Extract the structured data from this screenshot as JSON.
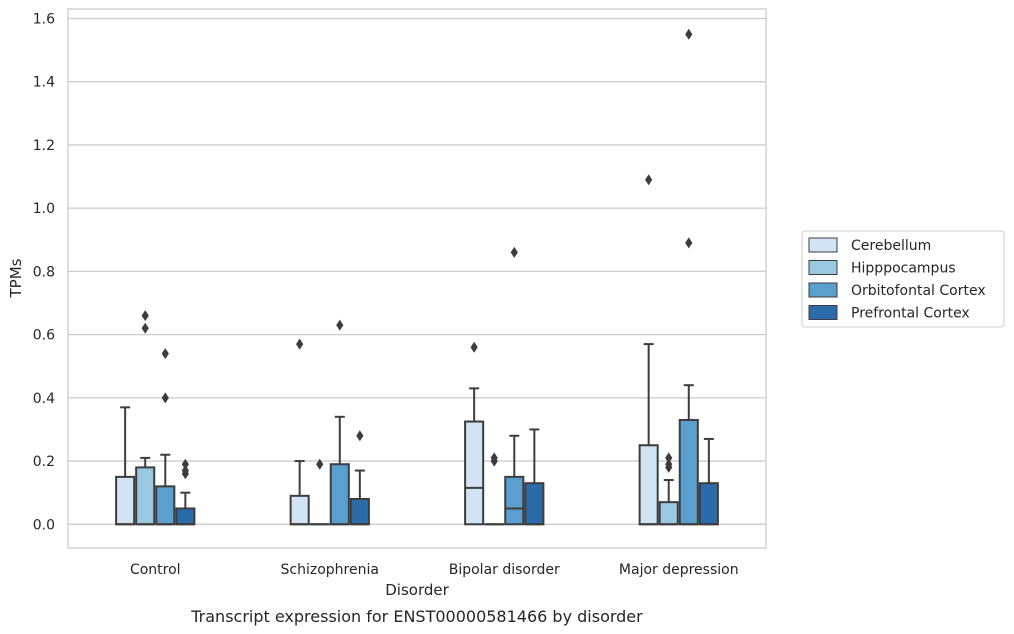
{
  "chart_data": {
    "type": "box",
    "title": "",
    "caption": "Transcript expression for ENST00000581466 by disorder",
    "xlabel": "Disorder",
    "ylabel": "TPMs",
    "ylim": [
      -0.075,
      1.63
    ],
    "yticks": [
      "0.0",
      "0.2",
      "0.4",
      "0.6",
      "0.8",
      "1.0",
      "1.2",
      "1.4",
      "1.6"
    ],
    "grid": "horizontal",
    "legend_position": "right",
    "categories": [
      "Control",
      "Schizophrenia",
      "Bipolar disorder",
      "Major depression"
    ],
    "series": [
      {
        "name": "Cerebellum",
        "color": "#d2e3f3",
        "boxes": [
          {
            "q1": 0.0,
            "median": 0.0,
            "q3": 0.15,
            "whislo": 0.0,
            "whishi": 0.37,
            "fliers": []
          },
          {
            "q1": 0.0,
            "median": 0.0,
            "q3": 0.09,
            "whislo": 0.0,
            "whishi": 0.2,
            "fliers": [
              0.57
            ]
          },
          {
            "q1": 0.0,
            "median": 0.115,
            "q3": 0.325,
            "whislo": 0.0,
            "whishi": 0.43,
            "fliers": [
              0.56
            ]
          },
          {
            "q1": 0.0,
            "median": 0.0,
            "q3": 0.25,
            "whislo": 0.0,
            "whishi": 0.57,
            "fliers": [
              1.09
            ]
          }
        ]
      },
      {
        "name": "Hipppocampus",
        "color": "#9ac8e0",
        "boxes": [
          {
            "q1": 0.0,
            "median": 0.0,
            "q3": 0.18,
            "whislo": 0.0,
            "whishi": 0.21,
            "fliers": [
              0.62,
              0.66
            ]
          },
          {
            "q1": 0.0,
            "median": 0.0,
            "q3": 0.0,
            "whislo": 0.0,
            "whishi": 0.0,
            "fliers": [
              0.19
            ]
          },
          {
            "q1": 0.0,
            "median": 0.0,
            "q3": 0.0,
            "whislo": 0.0,
            "whishi": 0.0,
            "fliers": [
              0.2,
              0.21
            ]
          },
          {
            "q1": 0.0,
            "median": 0.0,
            "q3": 0.07,
            "whislo": 0.0,
            "whishi": 0.14,
            "fliers": [
              0.18,
              0.19,
              0.21
            ]
          }
        ]
      },
      {
        "name": "Orbitofontal Cortex",
        "color": "#5a9fcd",
        "boxes": [
          {
            "q1": 0.0,
            "median": 0.0,
            "q3": 0.12,
            "whislo": 0.0,
            "whishi": 0.22,
            "fliers": [
              0.4,
              0.54
            ]
          },
          {
            "q1": 0.0,
            "median": 0.0,
            "q3": 0.19,
            "whislo": 0.0,
            "whishi": 0.34,
            "fliers": [
              0.63
            ]
          },
          {
            "q1": 0.0,
            "median": 0.05,
            "q3": 0.15,
            "whislo": 0.0,
            "whishi": 0.28,
            "fliers": [
              0.86
            ]
          },
          {
            "q1": 0.0,
            "median": 0.0,
            "q3": 0.33,
            "whislo": 0.0,
            "whishi": 0.44,
            "fliers": [
              0.89,
              1.55
            ]
          }
        ]
      },
      {
        "name": "Prefrontal Cortex",
        "color": "#2b6ba9",
        "boxes": [
          {
            "q1": 0.0,
            "median": 0.0,
            "q3": 0.05,
            "whislo": 0.0,
            "whishi": 0.1,
            "fliers": [
              0.16,
              0.17,
              0.19
            ]
          },
          {
            "q1": 0.0,
            "median": 0.0,
            "q3": 0.08,
            "whislo": 0.0,
            "whishi": 0.17,
            "fliers": [
              0.28
            ]
          },
          {
            "q1": 0.0,
            "median": 0.0,
            "q3": 0.13,
            "whislo": 0.0,
            "whishi": 0.3,
            "fliers": []
          },
          {
            "q1": 0.0,
            "median": 0.0,
            "q3": 0.13,
            "whislo": 0.0,
            "whishi": 0.27,
            "fliers": []
          }
        ]
      }
    ]
  }
}
